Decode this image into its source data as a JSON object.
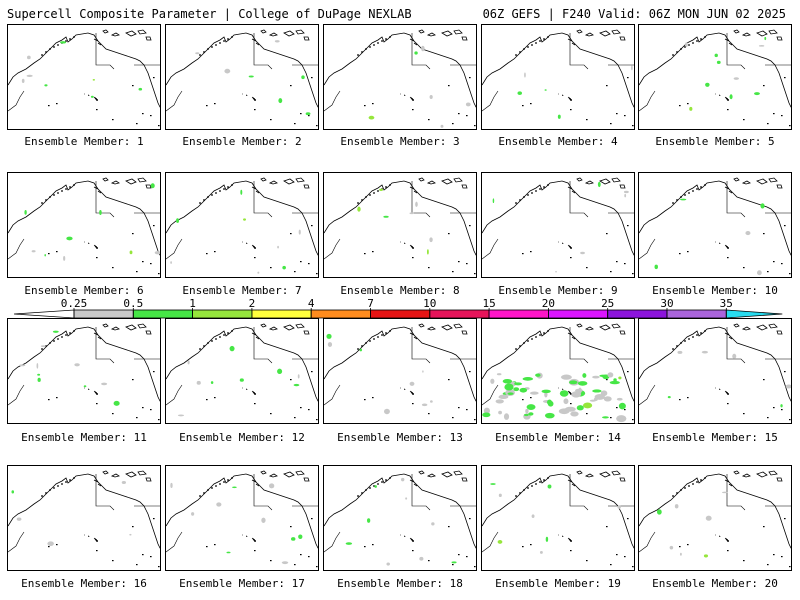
{
  "header": {
    "title": "Supercell Composite Parameter | College of DuPage NEXLAB",
    "run_info": "06Z GEFS | F240 Valid: 06Z MON JUN 02 2025"
  },
  "colorbar": {
    "labels": [
      "0.25",
      "0.5",
      "1",
      "2",
      "4",
      "7",
      "10",
      "15",
      "20",
      "25",
      "30",
      "35"
    ],
    "colors": [
      "#ffffff",
      "#c8c8c8",
      "#46e646",
      "#96e63c",
      "#ffff3c",
      "#ff8c1e",
      "#e61414",
      "#e6145a",
      "#ff14c8",
      "#dc14ff",
      "#8c14dc",
      "#aa64dc",
      "#28dcf0"
    ]
  },
  "ensemble": {
    "label_prefix": "Ensemble Member:",
    "members": [
      {
        "label": "Ensemble Member: 1",
        "activity": "low"
      },
      {
        "label": "Ensemble Member: 2",
        "activity": "low"
      },
      {
        "label": "Ensemble Member: 3",
        "activity": "low"
      },
      {
        "label": "Ensemble Member: 4",
        "activity": "low"
      },
      {
        "label": "Ensemble Member: 5",
        "activity": "low"
      },
      {
        "label": "Ensemble Member: 6",
        "activity": "low"
      },
      {
        "label": "Ensemble Member: 7",
        "activity": "low"
      },
      {
        "label": "Ensemble Member: 8",
        "activity": "low"
      },
      {
        "label": "Ensemble Member: 9",
        "activity": "low"
      },
      {
        "label": "Ensemble Member: 10",
        "activity": "low"
      },
      {
        "label": "Ensemble Member: 11",
        "activity": "low"
      },
      {
        "label": "Ensemble Member: 12",
        "activity": "low"
      },
      {
        "label": "Ensemble Member: 13",
        "activity": "low"
      },
      {
        "label": "Ensemble Member: 14",
        "activity": "high"
      },
      {
        "label": "Ensemble Member: 15",
        "activity": "low"
      },
      {
        "label": "Ensemble Member: 16",
        "activity": "low"
      },
      {
        "label": "Ensemble Member: 17",
        "activity": "low"
      },
      {
        "label": "Ensemble Member: 18",
        "activity": "low"
      },
      {
        "label": "Ensemble Member: 19",
        "activity": "low"
      },
      {
        "label": "Ensemble Member: 20",
        "activity": "low"
      }
    ]
  }
}
